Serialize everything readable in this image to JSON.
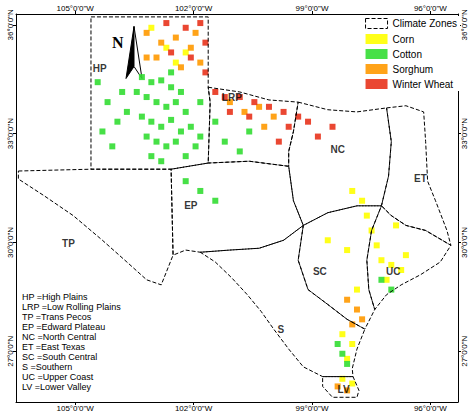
{
  "chart_data": {
    "type": "map",
    "xlim": [
      -106.5,
      -95.3
    ],
    "ylim": [
      25.6,
      36.3
    ],
    "xticks": [
      {
        "value": -105,
        "label": "105°0'0\"W"
      },
      {
        "value": -102,
        "label": "102°0'0\"W"
      },
      {
        "value": -99,
        "label": "99°0'0\"W"
      },
      {
        "value": -96,
        "label": "96°0'0\"W"
      }
    ],
    "yticks": [
      {
        "value": 27,
        "label": "27°0'0\"N"
      },
      {
        "value": 30,
        "label": "30°0'0\"N"
      },
      {
        "value": 33,
        "label": "33°0'0\"N"
      },
      {
        "value": 36,
        "label": "36°0'0\"N"
      }
    ],
    "grid": false,
    "legend": "upper right",
    "zones": {
      "name": "Climate Zones",
      "color": "#000000",
      "line_style": "dashed",
      "areas": [
        {
          "label": "HP",
          "label_at": [
            -104.38,
            34.8
          ],
          "boundary": [
            [
              -104.6,
              36.22
            ],
            [
              -101.63,
              36.22
            ],
            [
              -101.63,
              34.28
            ],
            [
              -101.58,
              33.87
            ],
            [
              -101.63,
              32.19
            ],
            [
              -102.57,
              32.02
            ],
            [
              -104.6,
              32.02
            ]
          ]
        },
        {
          "label": "LRP",
          "label_at": [
            -101.03,
            34.01
          ],
          "boundary": [
            [
              -101.63,
              34.28
            ],
            [
              -100.83,
              34.15
            ],
            [
              -100.09,
              33.93
            ],
            [
              -99.35,
              33.87
            ],
            [
              -99.47,
              33.06
            ],
            [
              -99.59,
              32.51
            ],
            [
              -99.59,
              32.1
            ],
            [
              -100.59,
              32.24
            ],
            [
              -101.63,
              32.19
            ],
            [
              -101.58,
              33.87
            ]
          ]
        },
        {
          "label": "TP",
          "label_at": [
            -105.17,
            29.98
          ],
          "boundary": [
            [
              -106.44,
              31.97
            ],
            [
              -104.6,
              32.02
            ],
            [
              -102.57,
              32.02
            ],
            [
              -102.52,
              29.65
            ],
            [
              -102.82,
              28.83
            ],
            [
              -103.19,
              28.97
            ],
            [
              -103.69,
              29.46
            ],
            [
              -104.31,
              30.06
            ],
            [
              -105.05,
              30.74
            ],
            [
              -105.79,
              31.29
            ],
            [
              -106.44,
              31.75
            ]
          ]
        },
        {
          "label": "EP",
          "label_at": [
            -102.07,
            31.01
          ],
          "boundary": [
            [
              -102.57,
              32.02
            ],
            [
              -101.63,
              32.19
            ],
            [
              -100.59,
              32.24
            ],
            [
              -99.59,
              32.1
            ],
            [
              -99.47,
              31.15
            ],
            [
              -99.22,
              30.47
            ],
            [
              -99.72,
              30.06
            ],
            [
              -100.34,
              29.84
            ],
            [
              -101.08,
              29.79
            ],
            [
              -101.83,
              29.73
            ],
            [
              -102.2,
              29.79
            ],
            [
              -102.52,
              29.65
            ]
          ]
        },
        {
          "label": "NC",
          "label_at": [
            -98.35,
            32.57
          ],
          "boundary": [
            [
              -99.35,
              33.87
            ],
            [
              -98.6,
              33.66
            ],
            [
              -97.86,
              33.6
            ],
            [
              -97.11,
              33.71
            ],
            [
              -96.99,
              32.78
            ],
            [
              -97.06,
              31.83
            ],
            [
              -97.24,
              31.01
            ],
            [
              -97.86,
              31.01
            ],
            [
              -98.6,
              30.82
            ],
            [
              -99.22,
              30.47
            ],
            [
              -99.47,
              31.15
            ],
            [
              -99.59,
              32.1
            ],
            [
              -99.59,
              32.51
            ],
            [
              -99.47,
              33.06
            ]
          ]
        },
        {
          "label": "ET",
          "label_at": [
            -96.25,
            31.75
          ],
          "boundary": [
            [
              -97.11,
              33.71
            ],
            [
              -96.62,
              33.77
            ],
            [
              -96.17,
              33.6
            ],
            [
              -96.12,
              32.78
            ],
            [
              -96.07,
              31.69
            ],
            [
              -95.87,
              31.15
            ],
            [
              -95.58,
              30.33
            ],
            [
              -95.48,
              29.92
            ],
            [
              -96.12,
              30.33
            ],
            [
              -96.62,
              30.47
            ],
            [
              -96.99,
              30.74
            ],
            [
              -97.24,
              31.01
            ],
            [
              -97.06,
              31.83
            ],
            [
              -96.99,
              32.78
            ]
          ]
        },
        {
          "label": "SC",
          "label_at": [
            -98.8,
            29.19
          ],
          "boundary": [
            [
              -99.22,
              30.47
            ],
            [
              -98.6,
              30.82
            ],
            [
              -97.86,
              31.01
            ],
            [
              -97.24,
              31.01
            ],
            [
              -97.49,
              30.33
            ],
            [
              -97.61,
              29.51
            ],
            [
              -97.56,
              28.7
            ],
            [
              -97.41,
              28.15
            ],
            [
              -97.66,
              27.61
            ],
            [
              -98.11,
              27.88
            ],
            [
              -98.6,
              28.29
            ],
            [
              -99.1,
              28.7
            ],
            [
              -99.35,
              29.51
            ]
          ]
        },
        {
          "label": "UC",
          "label_at": [
            -96.94,
            29.19
          ],
          "boundary": [
            [
              -97.24,
              31.01
            ],
            [
              -96.99,
              30.74
            ],
            [
              -96.62,
              30.47
            ],
            [
              -96.12,
              30.33
            ],
            [
              -95.48,
              29.92
            ],
            [
              -95.75,
              29.46
            ],
            [
              -96.25,
              29.11
            ],
            [
              -96.74,
              28.83
            ],
            [
              -97.11,
              28.56
            ],
            [
              -97.41,
              28.15
            ],
            [
              -97.56,
              28.7
            ],
            [
              -97.61,
              29.51
            ],
            [
              -97.49,
              30.33
            ]
          ]
        },
        {
          "label": "S",
          "label_at": [
            -99.79,
            27.61
          ],
          "boundary": [
            [
              -101.83,
              29.73
            ],
            [
              -101.08,
              29.79
            ],
            [
              -100.34,
              29.84
            ],
            [
              -99.72,
              30.06
            ],
            [
              -99.22,
              30.47
            ],
            [
              -99.35,
              29.51
            ],
            [
              -99.1,
              28.7
            ],
            [
              -98.6,
              28.29
            ],
            [
              -98.11,
              27.88
            ],
            [
              -97.66,
              27.61
            ],
            [
              -97.86,
              27.06
            ],
            [
              -97.98,
              26.52
            ],
            [
              -97.96,
              26.3
            ],
            [
              -98.73,
              26.3
            ],
            [
              -99.22,
              26.57
            ],
            [
              -99.59,
              27.06
            ],
            [
              -99.97,
              27.61
            ],
            [
              -100.29,
              28.1
            ],
            [
              -100.64,
              28.56
            ],
            [
              -101.03,
              29.02
            ],
            [
              -101.45,
              29.46
            ]
          ]
        },
        {
          "label": "LV",
          "label_at": [
            -98.2,
            25.95
          ],
          "boundary": [
            [
              -98.73,
              26.3
            ],
            [
              -97.96,
              26.3
            ],
            [
              -97.81,
              25.92
            ],
            [
              -97.86,
              25.73
            ],
            [
              -98.48,
              25.73
            ],
            [
              -98.73,
              26.03
            ]
          ]
        }
      ]
    },
    "series": [
      {
        "name": "Corn",
        "color": "#ffff00",
        "marker": "square",
        "values": [
          [
            -103.07,
            35.92
          ],
          [
            -102.69,
            35.37
          ],
          [
            -102.2,
            35.24
          ],
          [
            -102.45,
            34.96
          ],
          [
            -97.98,
            31.42
          ],
          [
            -97.73,
            31.15
          ],
          [
            -97.61,
            30.74
          ],
          [
            -97.49,
            30.33
          ],
          [
            -97.36,
            29.92
          ],
          [
            -97.24,
            29.51
          ],
          [
            -96.99,
            29.38
          ],
          [
            -96.74,
            29.24
          ],
          [
            -96.62,
            29.65
          ],
          [
            -97.11,
            28.97
          ],
          [
            -96.87,
            30.47
          ],
          [
            -98.23,
            27.47
          ],
          [
            -97.98,
            27.2
          ],
          [
            -98.11,
            26.79
          ],
          [
            -98.23,
            26.24
          ],
          [
            -97.98,
            26.11
          ],
          [
            -98.6,
            30.06
          ],
          [
            -98.11,
            29.79
          ],
          [
            -97.86,
            28.7
          ]
        ]
      },
      {
        "name": "Cotton",
        "color": "#33dd33",
        "marker": "square",
        "values": [
          [
            -103.31,
            34.56
          ],
          [
            -103.07,
            34.42
          ],
          [
            -102.82,
            34.47
          ],
          [
            -102.57,
            34.28
          ],
          [
            -102.32,
            34.15
          ],
          [
            -103.19,
            34.01
          ],
          [
            -102.94,
            33.87
          ],
          [
            -102.69,
            33.74
          ],
          [
            -102.45,
            33.87
          ],
          [
            -102.2,
            33.6
          ],
          [
            -103.31,
            33.47
          ],
          [
            -103.07,
            33.33
          ],
          [
            -102.82,
            33.19
          ],
          [
            -102.57,
            33.38
          ],
          [
            -102.32,
            33.06
          ],
          [
            -102.07,
            33.19
          ],
          [
            -103.19,
            32.92
          ],
          [
            -102.94,
            32.78
          ],
          [
            -102.69,
            32.65
          ],
          [
            -102.45,
            32.78
          ],
          [
            -101.95,
            32.65
          ],
          [
            -103.07,
            32.38
          ],
          [
            -102.82,
            32.24
          ],
          [
            -102.2,
            32.38
          ],
          [
            -101.83,
            33.87
          ],
          [
            -101.83,
            32.92
          ],
          [
            -101.45,
            33.33
          ],
          [
            -101.21,
            32.78
          ],
          [
            -100.83,
            32.51
          ],
          [
            -100.59,
            33.06
          ],
          [
            -102.2,
            31.69
          ],
          [
            -101.83,
            31.42
          ],
          [
            -101.45,
            31.15
          ],
          [
            -98.23,
            26.93
          ],
          [
            -98.11,
            26.65
          ],
          [
            -98.35,
            27.2
          ],
          [
            -97.24,
            28.97
          ],
          [
            -96.99,
            28.7
          ],
          [
            -102.57,
            34.69
          ],
          [
            -103.44,
            34.15
          ],
          [
            -104.43,
            34.42
          ],
          [
            -104.18,
            33.87
          ],
          [
            -103.93,
            33.33
          ],
          [
            -104.31,
            33.06
          ],
          [
            -103.81,
            34.15
          ],
          [
            -104.06,
            32.65
          ],
          [
            -103.69,
            33.6
          ]
        ]
      },
      {
        "name": "Sorghum",
        "color": "#ff9900",
        "marker": "square",
        "values": [
          [
            -103.19,
            35.78
          ],
          [
            -102.82,
            35.51
          ],
          [
            -102.45,
            35.65
          ],
          [
            -102.07,
            35.37
          ],
          [
            -101.83,
            34.96
          ],
          [
            -102.94,
            35.1
          ],
          [
            -102.32,
            34.83
          ],
          [
            -101.08,
            33.87
          ],
          [
            -100.71,
            33.6
          ],
          [
            -100.34,
            33.74
          ],
          [
            -99.97,
            33.47
          ],
          [
            -100.21,
            33.19
          ],
          [
            -98.11,
            28.42
          ],
          [
            -97.86,
            28.15
          ],
          [
            -97.73,
            27.88
          ],
          [
            -97.98,
            27.74
          ],
          [
            -98.35,
            26.03
          ],
          [
            -98.11,
            25.92
          ],
          [
            -101.95,
            35.78
          ],
          [
            -103.19,
            35.1
          ]
        ]
      },
      {
        "name": "Winter Wheat",
        "color": "#e8331c",
        "marker": "square",
        "values": [
          [
            -102.69,
            36.05
          ],
          [
            -102.2,
            35.92
          ],
          [
            -101.83,
            36.05
          ],
          [
            -101.7,
            35.51
          ],
          [
            -102.07,
            35.1
          ],
          [
            -102.57,
            35.24
          ],
          [
            -101.7,
            34.69
          ],
          [
            -101.45,
            34.15
          ],
          [
            -101.21,
            34.01
          ],
          [
            -100.83,
            34.01
          ],
          [
            -100.46,
            33.87
          ],
          [
            -100.09,
            33.74
          ],
          [
            -99.72,
            33.6
          ],
          [
            -100.59,
            33.47
          ],
          [
            -101.08,
            33.6
          ],
          [
            -99.59,
            33.19
          ],
          [
            -99.35,
            33.47
          ],
          [
            -99.1,
            33.33
          ],
          [
            -98.85,
            32.92
          ],
          [
            -98.48,
            33.19
          ],
          [
            -99.84,
            32.78
          ]
        ]
      }
    ],
    "key": [
      "HP =High Plains",
      "LRP =Low Rolling Plains",
      "TP =Trans Pecos",
      "EP =Edward Plateau",
      "NC =North Central",
      "ET =East Texas",
      "SC =South Central",
      "S =Southern",
      "UC =Upper Coast",
      "LV =Lower Valley"
    ],
    "north_label": "N"
  }
}
